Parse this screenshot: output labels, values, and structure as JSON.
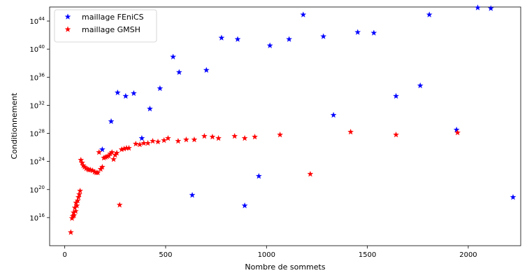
{
  "chart_data": {
    "type": "scatter",
    "xlabel": "Nombre de sommets",
    "ylabel": "Conditionnement",
    "xlim": [
      -75,
      2260
    ],
    "y_scale": "log",
    "ylim_log10": [
      12,
      46
    ],
    "x_ticks": [
      0,
      500,
      1000,
      1500,
      2000
    ],
    "y_ticks": [
      {
        "exp": 16,
        "base": "10",
        "sup": "16"
      },
      {
        "exp": 20,
        "base": "10",
        "sup": "20"
      },
      {
        "exp": 24,
        "base": "10",
        "sup": "24"
      },
      {
        "exp": 28,
        "base": "10",
        "sup": "28"
      },
      {
        "exp": 32,
        "base": "10",
        "sup": "32"
      },
      {
        "exp": 36,
        "base": "10",
        "sup": "36"
      },
      {
        "exp": 40,
        "base": "10",
        "sup": "40"
      },
      {
        "exp": 44,
        "base": "10",
        "sup": "44"
      }
    ],
    "grid": false,
    "legend_position": "top-left",
    "marker": "star",
    "series": [
      {
        "name": "maillage FEniCS",
        "color": "#0000ff",
        "points": [
          [
            186,
            25.7
          ],
          [
            230,
            29.7
          ],
          [
            262,
            33.8
          ],
          [
            302,
            33.3
          ],
          [
            342,
            33.7
          ],
          [
            382,
            27.3
          ],
          [
            422,
            31.5
          ],
          [
            472,
            34.4
          ],
          [
            537,
            38.9
          ],
          [
            567,
            36.7
          ],
          [
            632,
            19.2
          ],
          [
            702,
            37.0
          ],
          [
            777,
            41.6
          ],
          [
            857,
            41.4
          ],
          [
            892,
            17.7
          ],
          [
            962,
            21.9
          ],
          [
            1017,
            40.5
          ],
          [
            1112,
            41.4
          ],
          [
            1182,
            44.9
          ],
          [
            1282,
            41.8
          ],
          [
            1332,
            30.6
          ],
          [
            1452,
            42.4
          ],
          [
            1532,
            42.3
          ],
          [
            1642,
            33.3
          ],
          [
            1762,
            34.8
          ],
          [
            1807,
            44.9
          ],
          [
            1942,
            28.5
          ],
          [
            2047,
            45.9
          ],
          [
            2112,
            45.8
          ],
          [
            2222,
            18.9
          ]
        ]
      },
      {
        "name": "maillage GMSH",
        "color": "#ff0000",
        "points": [
          [
            30,
            13.9
          ],
          [
            36,
            15.9
          ],
          [
            40,
            16.2
          ],
          [
            44,
            16.7
          ],
          [
            46,
            16.3
          ],
          [
            50,
            17.4
          ],
          [
            54,
            16.9
          ],
          [
            56,
            18.1
          ],
          [
            60,
            17.7
          ],
          [
            64,
            18.4
          ],
          [
            68,
            18.9
          ],
          [
            72,
            19.3
          ],
          [
            76,
            19.8
          ],
          [
            80,
            24.2
          ],
          [
            86,
            23.8
          ],
          [
            92,
            23.4
          ],
          [
            98,
            23.2
          ],
          [
            106,
            23.0
          ],
          [
            114,
            22.9
          ],
          [
            120,
            22.8
          ],
          [
            128,
            22.8
          ],
          [
            138,
            22.7
          ],
          [
            148,
            22.5
          ],
          [
            156,
            22.4
          ],
          [
            164,
            22.4
          ],
          [
            170,
            25.3
          ],
          [
            178,
            22.9
          ],
          [
            186,
            23.2
          ],
          [
            194,
            24.5
          ],
          [
            202,
            24.6
          ],
          [
            210,
            24.7
          ],
          [
            218,
            24.8
          ],
          [
            226,
            25.1
          ],
          [
            234,
            25.3
          ],
          [
            242,
            24.3
          ],
          [
            250,
            24.9
          ],
          [
            258,
            25.2
          ],
          [
            272,
            17.8
          ],
          [
            282,
            25.7
          ],
          [
            294,
            25.8
          ],
          [
            306,
            25.9
          ],
          [
            318,
            25.9
          ],
          [
            352,
            26.5
          ],
          [
            372,
            26.4
          ],
          [
            392,
            26.6
          ],
          [
            412,
            26.6
          ],
          [
            436,
            26.9
          ],
          [
            462,
            26.8
          ],
          [
            492,
            27.0
          ],
          [
            512,
            27.3
          ],
          [
            562,
            26.9
          ],
          [
            602,
            27.1
          ],
          [
            642,
            27.1
          ],
          [
            692,
            27.6
          ],
          [
            732,
            27.5
          ],
          [
            762,
            27.3
          ],
          [
            842,
            27.6
          ],
          [
            892,
            27.3
          ],
          [
            942,
            27.5
          ],
          [
            1067,
            27.8
          ],
          [
            1217,
            22.2
          ],
          [
            1417,
            28.2
          ],
          [
            1642,
            27.8
          ],
          [
            1947,
            28.1
          ]
        ]
      }
    ]
  }
}
